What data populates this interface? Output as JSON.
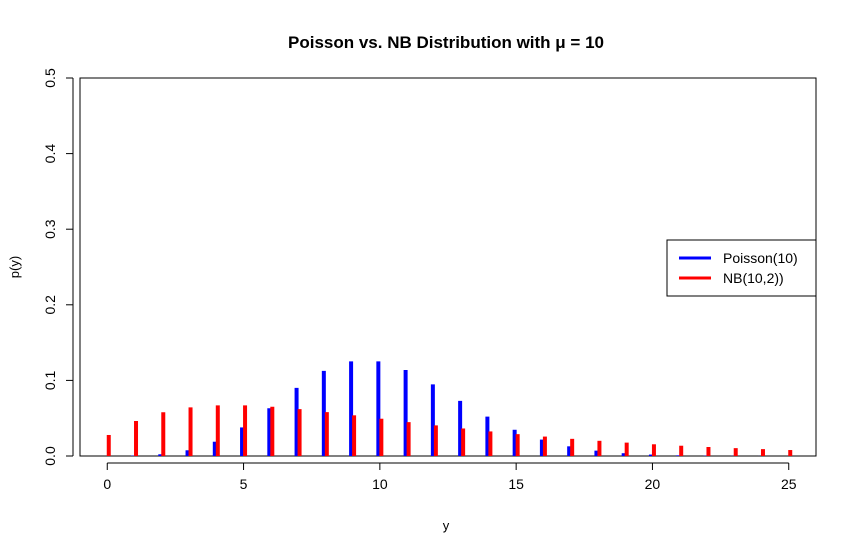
{
  "chart_data": {
    "type": "bar",
    "title": "Poisson vs. NB Distribution with μ = 10",
    "xlabel": "y",
    "ylabel": "p(y)",
    "xlim": [
      -1,
      26
    ],
    "ylim": [
      0,
      0.5
    ],
    "x_ticks": [
      "0",
      "5",
      "10",
      "15",
      "20",
      "25"
    ],
    "y_ticks": [
      "0.0",
      "0.1",
      "0.2",
      "0.3",
      "0.4",
      "0.5"
    ],
    "x": [
      0,
      1,
      2,
      3,
      4,
      5,
      6,
      7,
      8,
      9,
      10,
      11,
      12,
      13,
      14,
      15,
      16,
      17,
      18,
      19,
      20,
      21,
      22,
      23,
      24,
      25
    ],
    "series": [
      {
        "name": "Poisson(10)",
        "color": "#0000ff",
        "values": [
          4.54e-05,
          0.000454,
          0.00227,
          0.00757,
          0.0189,
          0.0378,
          0.0631,
          0.0901,
          0.1126,
          0.1251,
          0.1251,
          0.1137,
          0.0948,
          0.0729,
          0.0521,
          0.0347,
          0.0217,
          0.0128,
          0.0071,
          0.0037,
          0.0019,
          0.0009,
          0.0004,
          0.0002,
          0.0001,
          4e-05
        ]
      },
      {
        "name": "NB(10,2))",
        "color": "#ff0000",
        "values": [
          0.0278,
          0.0463,
          0.0579,
          0.0643,
          0.067,
          0.067,
          0.0651,
          0.062,
          0.0581,
          0.0538,
          0.0493,
          0.0448,
          0.0405,
          0.0364,
          0.0325,
          0.0289,
          0.0257,
          0.0227,
          0.0201,
          0.0177,
          0.0155,
          0.0136,
          0.0119,
          0.0104,
          0.0091,
          0.0079
        ]
      }
    ],
    "legend": {
      "position": "right"
    }
  }
}
